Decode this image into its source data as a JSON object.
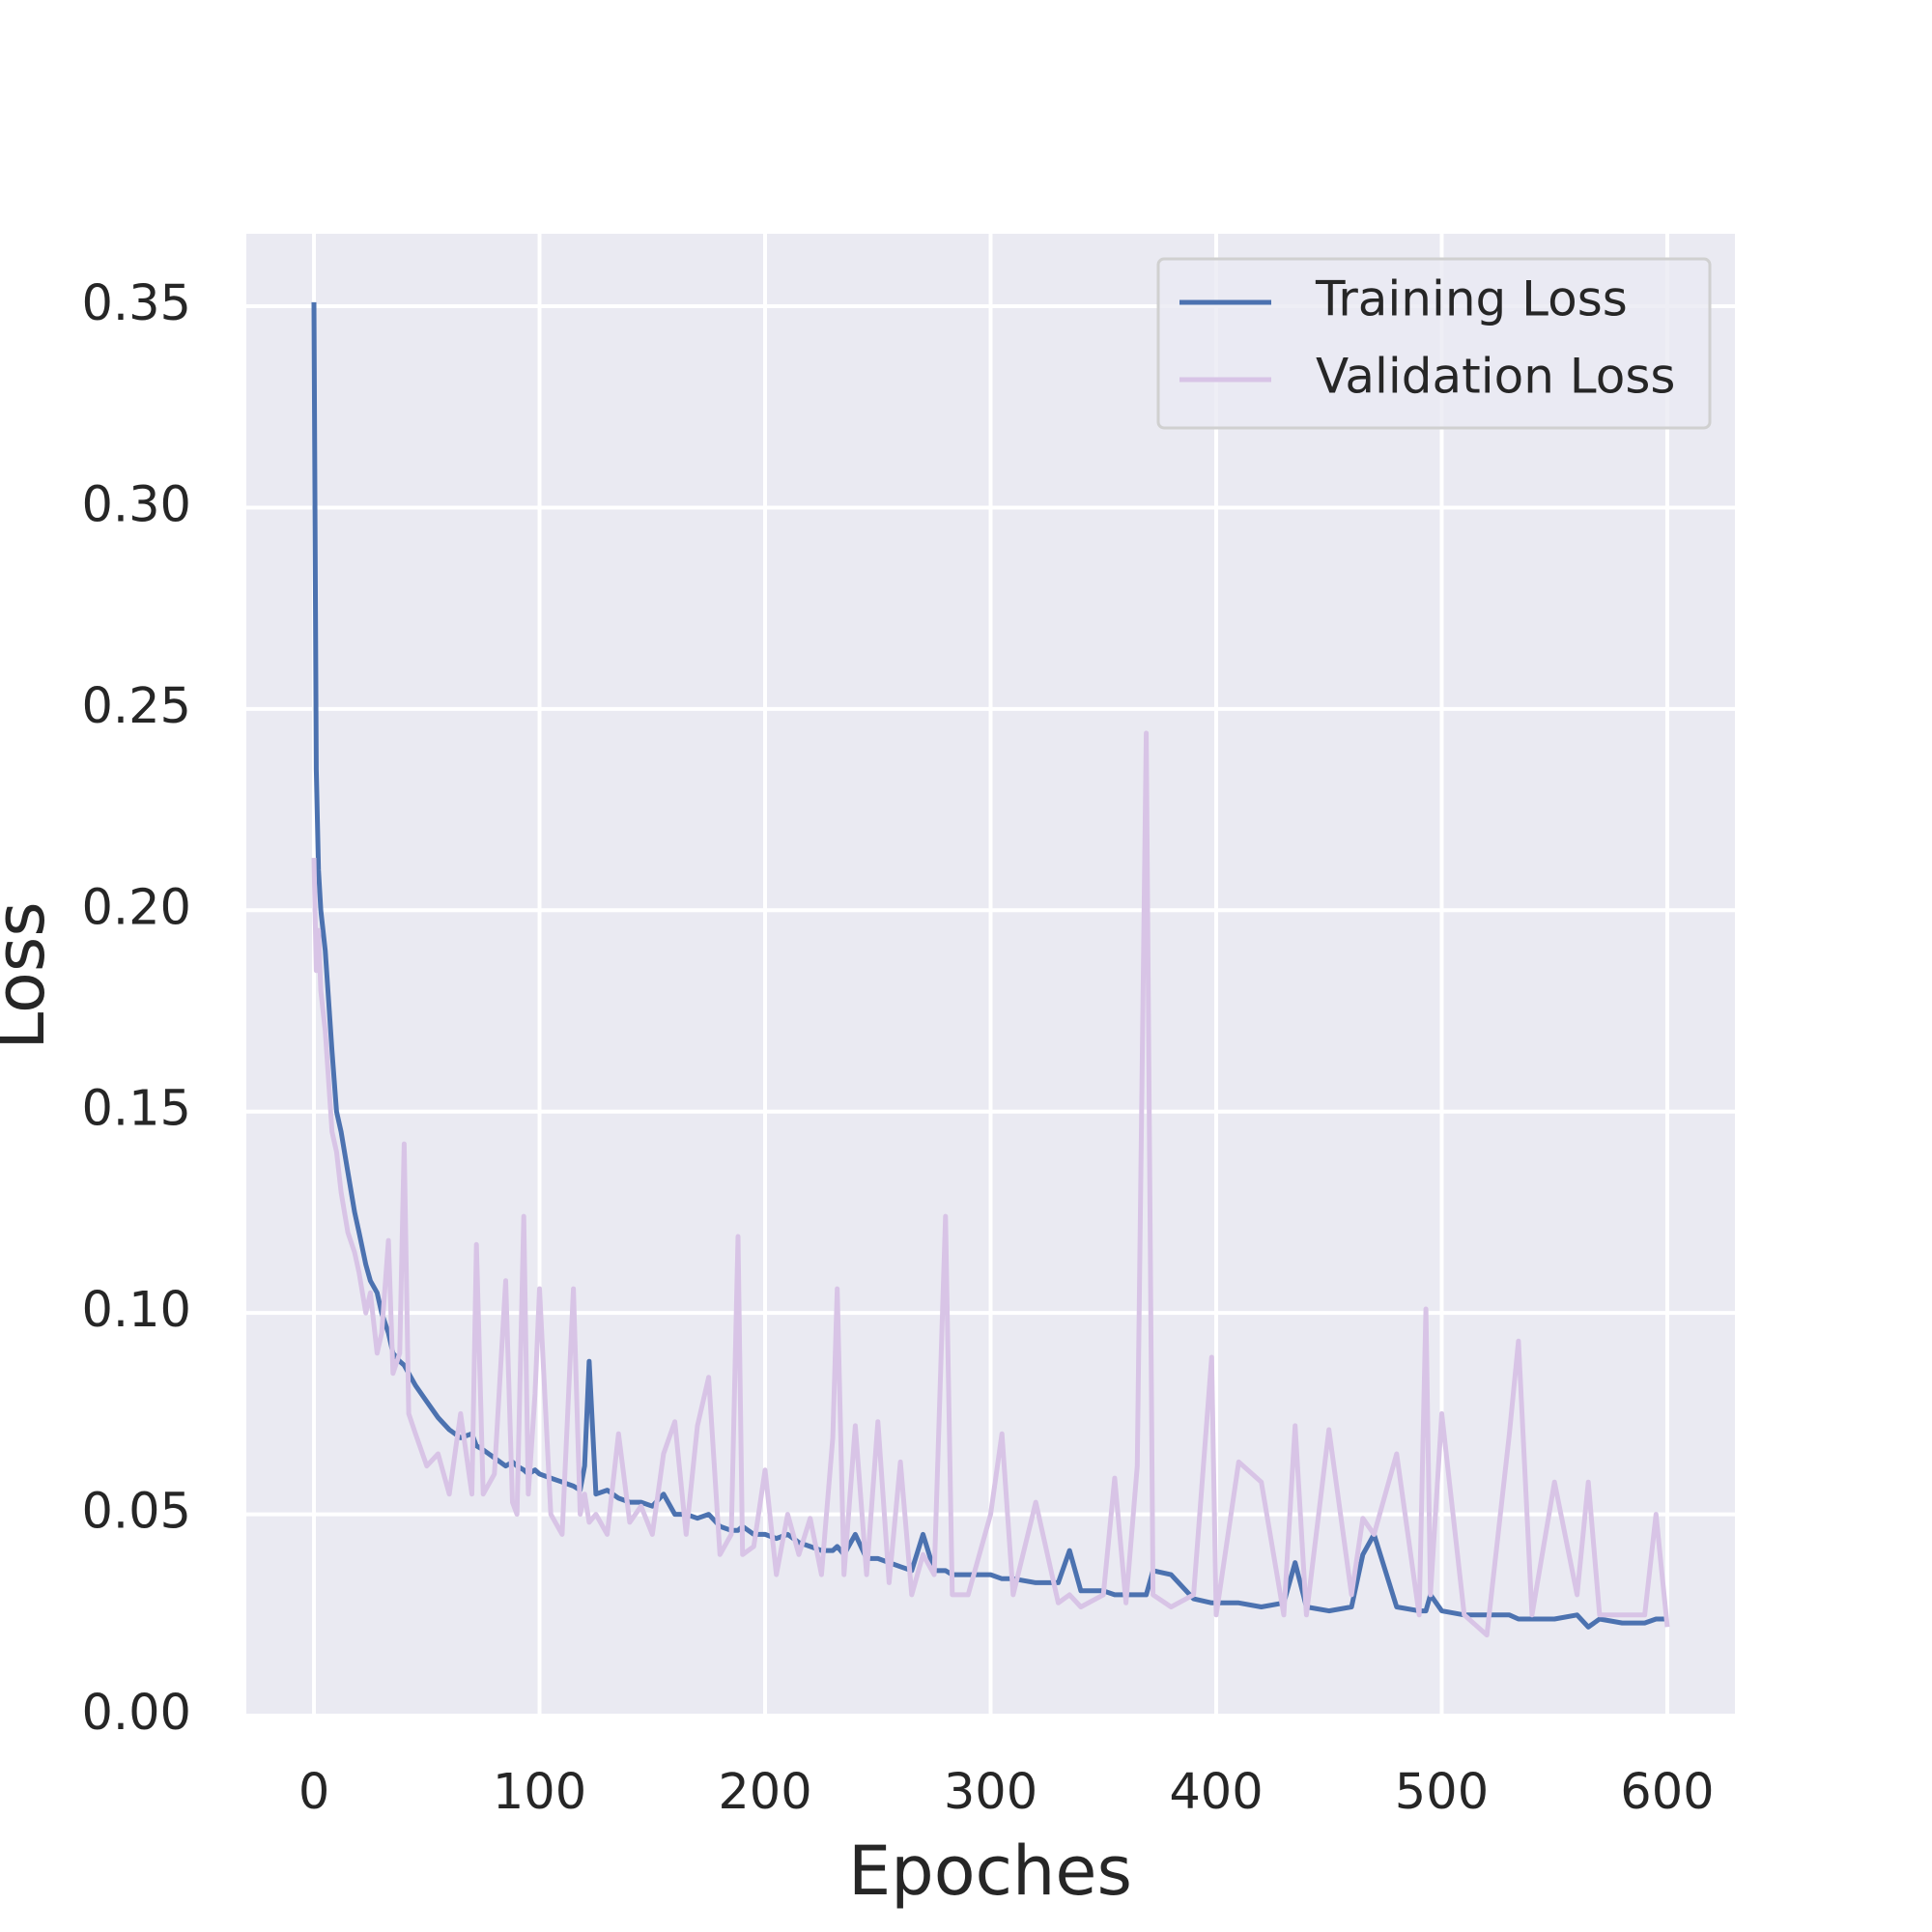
{
  "chart_data": {
    "type": "line",
    "x_label": "Epoches",
    "y_label": "Loss",
    "x": [
      0,
      1,
      2,
      3,
      5,
      8,
      10,
      12,
      15,
      18,
      20,
      23,
      25,
      28,
      30,
      33,
      35,
      38,
      40,
      42,
      45,
      50,
      55,
      60,
      65,
      70,
      72,
      75,
      80,
      85,
      88,
      90,
      93,
      95,
      98,
      100,
      105,
      110,
      115,
      118,
      120,
      122,
      125,
      130,
      135,
      140,
      145,
      150,
      155,
      160,
      165,
      170,
      175,
      180,
      185,
      188,
      190,
      195,
      200,
      205,
      210,
      215,
      220,
      225,
      230,
      232,
      235,
      240,
      245,
      250,
      255,
      260,
      265,
      270,
      275,
      280,
      283,
      290,
      300,
      305,
      310,
      320,
      330,
      335,
      340,
      350,
      355,
      360,
      365,
      369,
      372,
      380,
      390,
      398,
      400,
      410,
      420,
      430,
      435,
      440,
      450,
      460,
      465,
      470,
      480,
      490,
      493,
      495,
      500,
      510,
      520,
      530,
      534,
      540,
      550,
      560,
      565,
      570,
      580,
      590,
      595,
      600
    ],
    "series": [
      {
        "name": "Training Loss",
        "color": "#4c72b0",
        "values": [
          0.351,
          0.235,
          0.21,
          0.2,
          0.19,
          0.165,
          0.15,
          0.145,
          0.135,
          0.125,
          0.12,
          0.112,
          0.108,
          0.105,
          0.1,
          0.095,
          0.09,
          0.088,
          0.087,
          0.085,
          0.082,
          0.078,
          0.074,
          0.071,
          0.069,
          0.07,
          0.067,
          0.066,
          0.064,
          0.062,
          0.063,
          0.062,
          0.061,
          0.06,
          0.061,
          0.06,
          0.059,
          0.058,
          0.057,
          0.056,
          0.062,
          0.088,
          0.055,
          0.056,
          0.054,
          0.053,
          0.053,
          0.052,
          0.055,
          0.05,
          0.05,
          0.049,
          0.05,
          0.047,
          0.046,
          0.046,
          0.047,
          0.045,
          0.045,
          0.044,
          0.045,
          0.043,
          0.042,
          0.041,
          0.041,
          0.042,
          0.04,
          0.045,
          0.039,
          0.039,
          0.038,
          0.037,
          0.036,
          0.045,
          0.036,
          0.036,
          0.035,
          0.035,
          0.035,
          0.034,
          0.034,
          0.033,
          0.033,
          0.041,
          0.031,
          0.031,
          0.03,
          0.03,
          0.03,
          0.03,
          0.036,
          0.035,
          0.029,
          0.028,
          0.028,
          0.028,
          0.027,
          0.028,
          0.038,
          0.027,
          0.026,
          0.027,
          0.04,
          0.045,
          0.027,
          0.026,
          0.026,
          0.03,
          0.026,
          0.025,
          0.025,
          0.025,
          0.024,
          0.024,
          0.024,
          0.025,
          0.022,
          0.024,
          0.023,
          0.023,
          0.024,
          0.024
        ]
      },
      {
        "name": "Validation Loss",
        "color": "#d8c4e6",
        "values": [
          0.213,
          0.185,
          0.195,
          0.18,
          0.17,
          0.145,
          0.14,
          0.13,
          0.12,
          0.115,
          0.11,
          0.1,
          0.105,
          0.09,
          0.095,
          0.118,
          0.085,
          0.09,
          0.142,
          0.075,
          0.07,
          0.062,
          0.065,
          0.055,
          0.075,
          0.055,
          0.117,
          0.055,
          0.06,
          0.108,
          0.053,
          0.05,
          0.124,
          0.055,
          0.08,
          0.106,
          0.05,
          0.045,
          0.106,
          0.05,
          0.055,
          0.048,
          0.05,
          0.045,
          0.07,
          0.048,
          0.052,
          0.045,
          0.065,
          0.073,
          0.045,
          0.072,
          0.084,
          0.04,
          0.045,
          0.119,
          0.04,
          0.042,
          0.061,
          0.035,
          0.05,
          0.04,
          0.049,
          0.035,
          0.069,
          0.106,
          0.035,
          0.072,
          0.035,
          0.073,
          0.033,
          0.063,
          0.03,
          0.04,
          0.035,
          0.124,
          0.03,
          0.03,
          0.05,
          0.07,
          0.03,
          0.053,
          0.028,
          0.03,
          0.027,
          0.03,
          0.059,
          0.028,
          0.062,
          0.244,
          0.03,
          0.027,
          0.03,
          0.089,
          0.025,
          0.063,
          0.058,
          0.025,
          0.072,
          0.025,
          0.071,
          0.03,
          0.049,
          0.045,
          0.065,
          0.025,
          0.101,
          0.03,
          0.075,
          0.025,
          0.02,
          0.07,
          0.093,
          0.025,
          0.058,
          0.03,
          0.058,
          0.025,
          0.025,
          0.025,
          0.05,
          0.022
        ]
      }
    ],
    "xlim": [
      -30,
      630
    ],
    "ylim": [
      0,
      0.368
    ],
    "xticks": [
      0,
      100,
      200,
      300,
      400,
      500,
      600
    ],
    "yticks": [
      {
        "value": 0,
        "label": "0.00"
      },
      0.05,
      {
        "value": 0.1,
        "label": "0.10"
      },
      0.15,
      {
        "value": 0.2,
        "label": "0.20"
      },
      0.25,
      {
        "value": 0.3,
        "label": "0.30"
      },
      0.35
    ],
    "grid": true,
    "legend": "upper right"
  }
}
